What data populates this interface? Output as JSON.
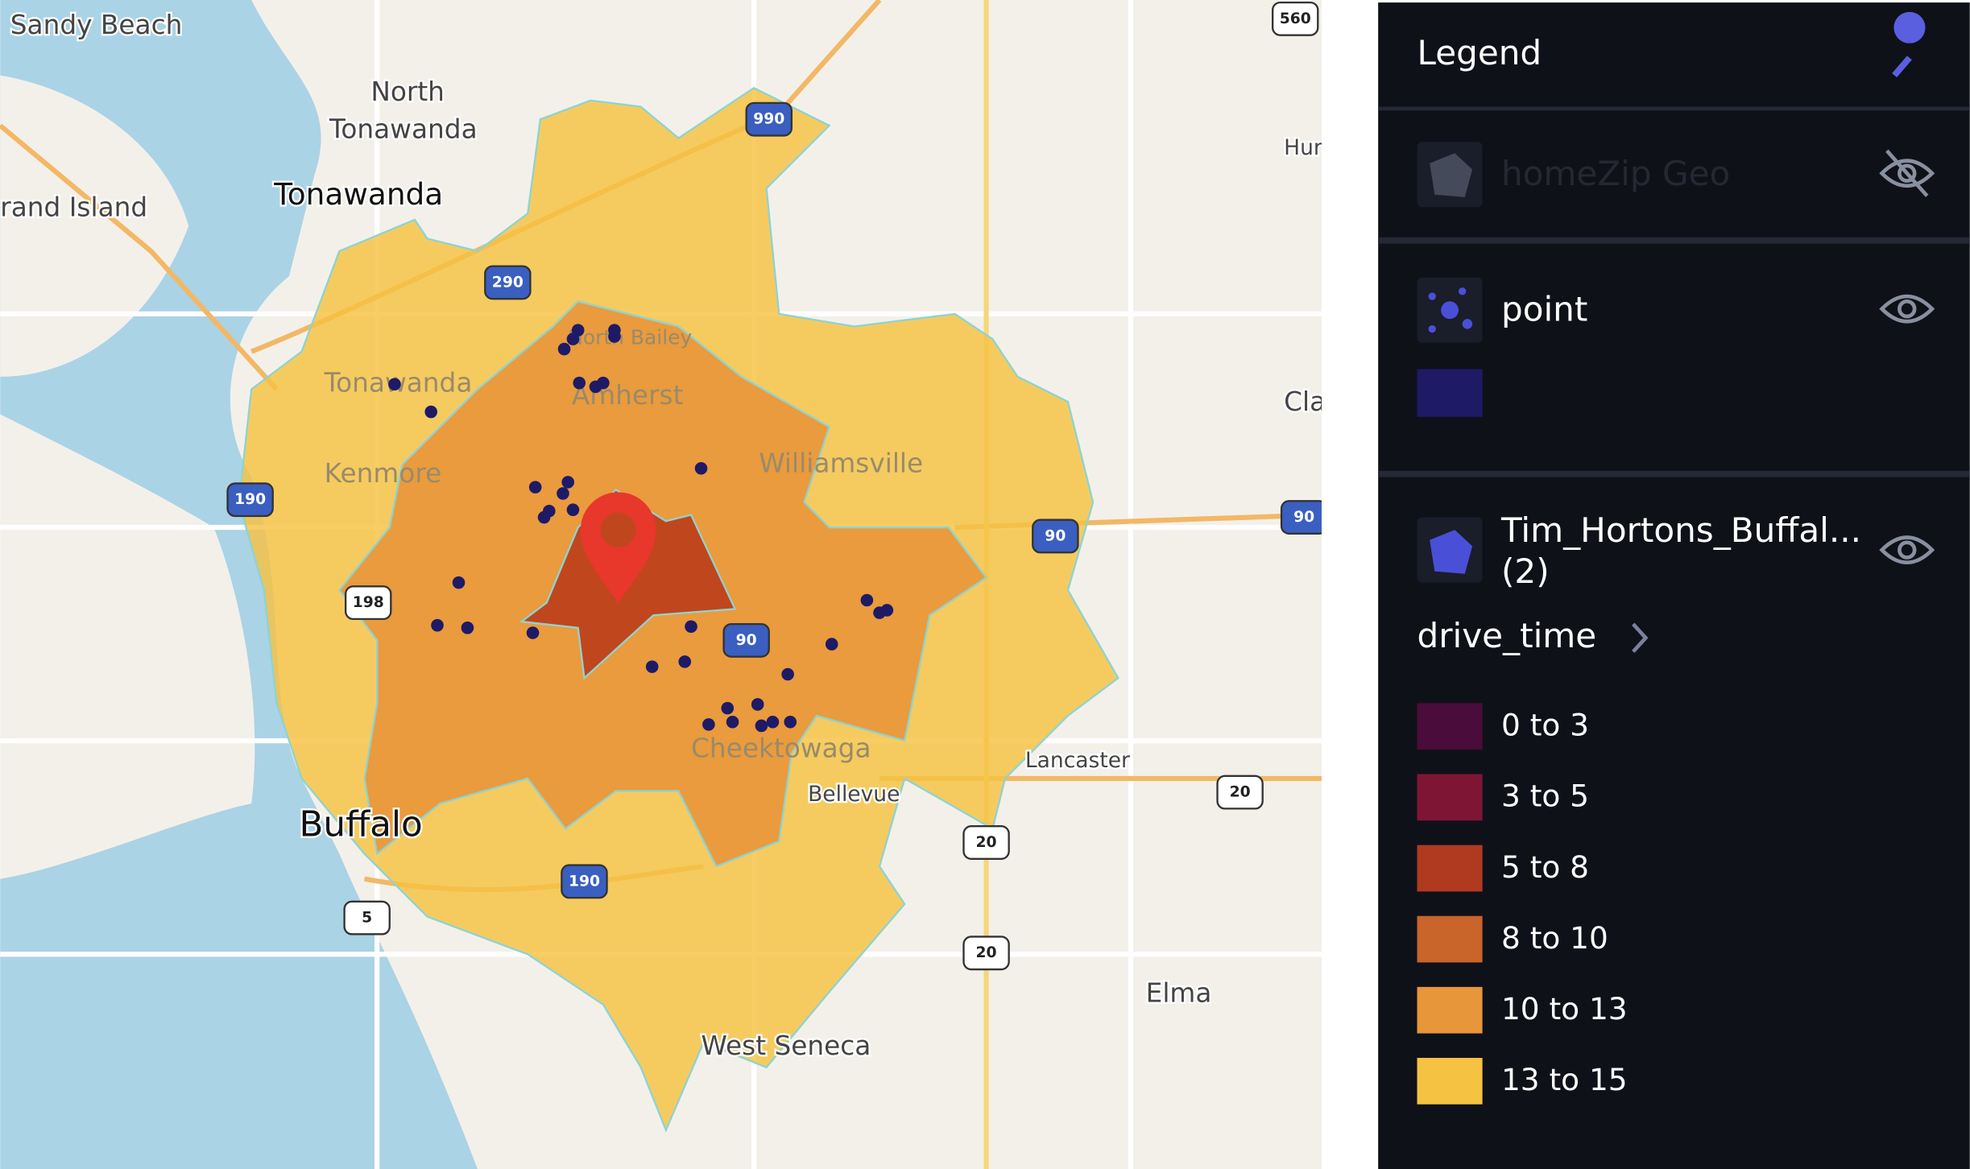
{
  "map": {
    "places": [
      "Sandy Beach",
      "North",
      "Tonawanda",
      "Tonawanda",
      "rand Island",
      "Tonawanda",
      "Kenmore",
      "North Bailey",
      "Amherst",
      "Williamsville",
      "Cheektowaga",
      "Bellevue",
      "Buffalo",
      "Lancaster",
      "Elma",
      "West Seneca",
      "Hur",
      "Cla"
    ],
    "shields": [
      "560",
      "990",
      "290",
      "190",
      "198",
      "90",
      "90",
      "90",
      "190",
      "5",
      "20",
      "20",
      "20"
    ]
  },
  "legend": {
    "title": "Legend",
    "layers": [
      {
        "name": "homeZip Geo"
      },
      {
        "name": "point",
        "color": "#1e1a66"
      },
      {
        "name": "Tim_Hortons_Buffal...",
        "count": "(2)",
        "field": "drive_time",
        "classes": [
          {
            "label": "0 to 3",
            "color": "#4a0c3a"
          },
          {
            "label": "3 to 5",
            "color": "#7f1535"
          },
          {
            "label": "5 to 8",
            "color": "#b03a20"
          },
          {
            "label": "8 to 10",
            "color": "#c9642a"
          },
          {
            "label": "10 to 13",
            "color": "#e8963a"
          },
          {
            "label": "13 to 15",
            "color": "#f5c242"
          }
        ]
      }
    ]
  }
}
